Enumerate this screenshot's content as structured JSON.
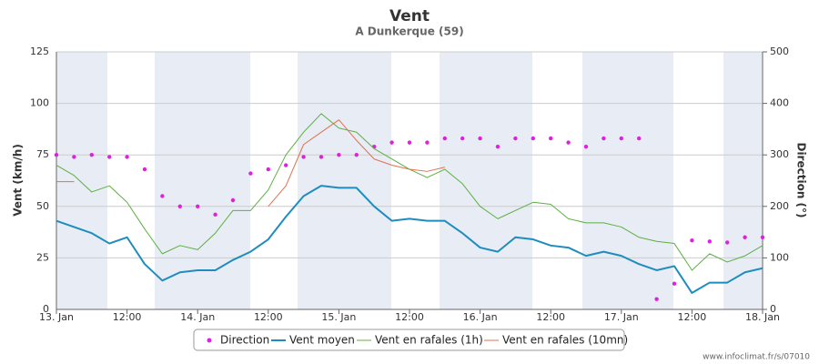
{
  "chart_data": {
    "type": "line",
    "title": "Vent",
    "subtitle": "A Dunkerque (59)",
    "source": "www.infoclimat.fr/s/07010",
    "y_label": "Vent (km/h)",
    "y2_label": "Direction (°)",
    "xlim": [
      0,
      120
    ],
    "xticks": [
      {
        "value": 0,
        "label": "13. Jan"
      },
      {
        "value": 12,
        "label": "12:00"
      },
      {
        "value": 24,
        "label": "14. Jan"
      },
      {
        "value": 36,
        "label": "12:00"
      },
      {
        "value": 48,
        "label": "15. Jan"
      },
      {
        "value": 60,
        "label": "12:00"
      },
      {
        "value": 72,
        "label": "16. Jan"
      },
      {
        "value": 84,
        "label": "12:00"
      },
      {
        "value": 96,
        "label": "17. Jan"
      },
      {
        "value": 108,
        "label": "12:00"
      },
      {
        "value": 120,
        "label": "18. Jan"
      }
    ],
    "ylim": [
      0,
      125
    ],
    "yticks": [
      0,
      25,
      50,
      75,
      100,
      125
    ],
    "y2lim": [
      0,
      500
    ],
    "y2ticks": [
      0,
      100,
      200,
      300,
      400,
      500
    ],
    "grid": true,
    "legend": "bottom",
    "x": [
      0,
      3,
      6,
      9,
      12,
      15,
      18,
      21,
      24,
      27,
      30,
      33,
      36,
      39,
      42,
      45,
      48,
      51,
      54,
      57,
      60,
      63,
      66,
      69,
      72,
      75,
      78,
      81,
      84,
      87,
      90,
      93,
      96,
      99,
      102,
      105,
      108,
      111,
      114,
      117,
      120
    ],
    "series": [
      {
        "name": "Direction",
        "color": "#e020e0",
        "mode": "markers",
        "axis": "y2",
        "values": [
          300,
          296,
          300,
          296,
          296,
          272,
          220,
          200,
          200,
          184,
          212,
          264,
          272,
          280,
          296,
          296,
          300,
          300,
          316,
          324,
          324,
          324,
          332,
          332,
          332,
          316,
          332,
          332,
          332,
          324,
          316,
          332,
          332,
          332,
          20,
          50,
          134,
          132,
          130,
          140,
          140
        ]
      },
      {
        "name": "Vent moyen",
        "color": "#1e8dbd",
        "mode": "line",
        "width": 2,
        "values": [
          43,
          40,
          37,
          32,
          35,
          22,
          14,
          18,
          19,
          19,
          24,
          28,
          34,
          45,
          55,
          60,
          59,
          59,
          50,
          43,
          44,
          43,
          43,
          37,
          30,
          28,
          35,
          34,
          31,
          30,
          26,
          28,
          26,
          22,
          19,
          21,
          8,
          13,
          13,
          18,
          20
        ]
      },
      {
        "name": "Vent en rafales (1h)",
        "color": "#5cb040",
        "mode": "line",
        "width": 1,
        "values": [
          70,
          65,
          57,
          60,
          52,
          39,
          27,
          31,
          29,
          37,
          48,
          48,
          58,
          75,
          86,
          95,
          88,
          86,
          78,
          73,
          68,
          64,
          68,
          61,
          50,
          44,
          48,
          52,
          51,
          44,
          42,
          42,
          40,
          35,
          33,
          32,
          19,
          27,
          23,
          26,
          31
        ]
      },
      {
        "name": "Vent en rafales (10mn)",
        "color": "#e07050",
        "mode": "line",
        "width": 1,
        "values": [
          62,
          62,
          null,
          null,
          null,
          null,
          null,
          null,
          null,
          null,
          null,
          null,
          50,
          60,
          80,
          86,
          92,
          82,
          73,
          70,
          68,
          67,
          69,
          null,
          null,
          null,
          null,
          null,
          null,
          null,
          null,
          null,
          null,
          null,
          null,
          null,
          null,
          null,
          null,
          null,
          null
        ]
      }
    ]
  }
}
